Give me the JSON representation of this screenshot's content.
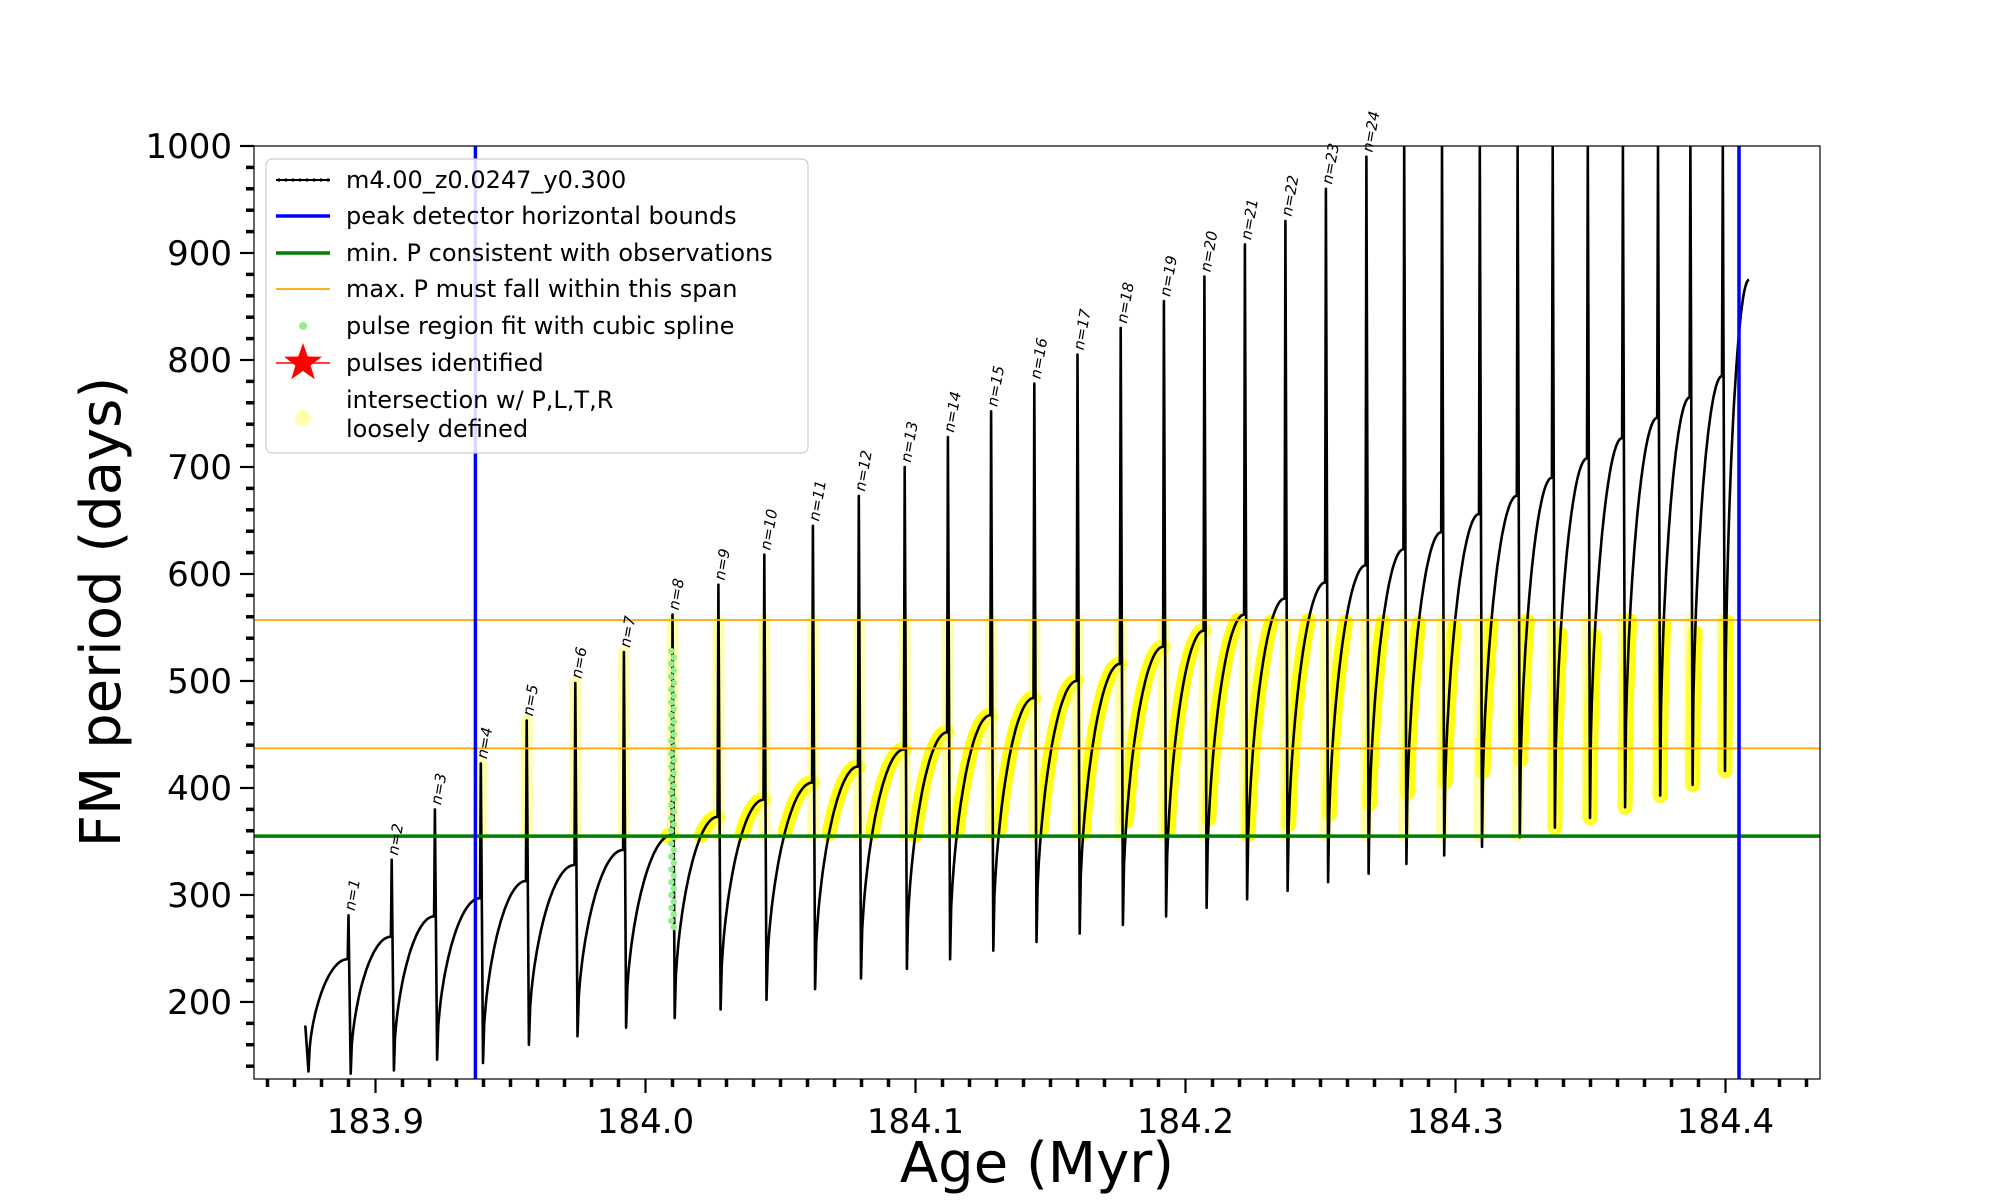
{
  "chart_data": {
    "type": "line",
    "title": "",
    "xlabel": "Age (Myr)",
    "ylabel": "FM period (days)",
    "xlim": [
      183.855,
      184.435
    ],
    "ylim": [
      128,
      1000
    ],
    "xticks": [
      183.9,
      184.0,
      184.1,
      184.2,
      184.3,
      184.4
    ],
    "xtick_labels": [
      "183.9",
      "184.0",
      "184.1",
      "184.2",
      "184.3",
      "184.4"
    ],
    "yticks": [
      200,
      300,
      400,
      500,
      600,
      700,
      800,
      900,
      1000
    ],
    "ytick_labels": [
      "200",
      "300",
      "400",
      "500",
      "600",
      "700",
      "800",
      "900",
      "1000"
    ],
    "x_minor_step": 0.01,
    "y_minor_step": 20,
    "grid": false,
    "legend_position": "top-left",
    "legend": [
      {
        "label": "m4.00_z0.0247_y0.300",
        "kind": "line-dot",
        "color": "#000000"
      },
      {
        "label": "peak detector horizontal bounds",
        "kind": "line",
        "color": "#0000ff"
      },
      {
        "label": "min. P consistent with observations",
        "kind": "line",
        "color": "#008000"
      },
      {
        "label": "max. P must fall within this span",
        "kind": "line-thin",
        "color": "#ffa500"
      },
      {
        "label": "pulse region fit with cubic spline",
        "kind": "dot",
        "color": "#90ee90"
      },
      {
        "label": "pulses identified",
        "kind": "star",
        "color": "#ff0000"
      },
      {
        "label": "intersection w/ P,L,T,R",
        "label2": "loosely defined",
        "kind": "circle",
        "color": "#ffff99"
      }
    ],
    "vlines": [
      {
        "x": 183.937,
        "color": "#0000ff"
      },
      {
        "x": 184.405,
        "color": "#0000ff"
      }
    ],
    "hlines": [
      {
        "y": 355,
        "color": "#008000"
      },
      {
        "y": 437,
        "color": "#ffa500"
      },
      {
        "y": 557,
        "color": "#ffa500"
      }
    ],
    "pulses": [
      {
        "t": 183.89,
        "trough": 133,
        "peak": 240
      },
      {
        "t": 183.906,
        "trough": 136,
        "peak": 261
      },
      {
        "t": 183.922,
        "trough": 146,
        "peak": 280
      },
      {
        "t": 183.939,
        "trough": 143,
        "peak": 297
      },
      {
        "t": 183.956,
        "trough": 160,
        "peak": 313
      },
      {
        "t": 183.974,
        "trough": 168,
        "peak": 328
      },
      {
        "t": 183.992,
        "trough": 176,
        "peak": 342
      },
      {
        "t": 184.01,
        "trough": 185,
        "peak": 356
      },
      {
        "t": 184.027,
        "trough": 193,
        "peak": 373
      },
      {
        "t": 184.044,
        "trough": 202,
        "peak": 389
      },
      {
        "t": 184.062,
        "trough": 212,
        "peak": 405
      },
      {
        "t": 184.079,
        "trough": 222,
        "peak": 420
      },
      {
        "t": 184.096,
        "trough": 231,
        "peak": 436
      },
      {
        "t": 184.112,
        "trough": 240,
        "peak": 452
      },
      {
        "t": 184.128,
        "trough": 248,
        "peak": 468
      },
      {
        "t": 184.144,
        "trough": 256,
        "peak": 484
      },
      {
        "t": 184.16,
        "trough": 264,
        "peak": 500
      },
      {
        "t": 184.176,
        "trough": 272,
        "peak": 516
      },
      {
        "t": 184.192,
        "trough": 280,
        "peak": 532
      },
      {
        "t": 184.207,
        "trough": 288,
        "peak": 547
      },
      {
        "t": 184.222,
        "trough": 296,
        "peak": 562
      },
      {
        "t": 184.237,
        "trough": 304,
        "peak": 577
      },
      {
        "t": 184.252,
        "trough": 312,
        "peak": 592
      },
      {
        "t": 184.267,
        "trough": 320,
        "peak": 608
      },
      {
        "t": 184.281,
        "trough": 329,
        "peak": 623
      },
      {
        "t": 184.295,
        "trough": 337,
        "peak": 639
      },
      {
        "t": 184.309,
        "trough": 345,
        "peak": 656
      },
      {
        "t": 184.323,
        "trough": 354,
        "peak": 673
      },
      {
        "t": 184.336,
        "trough": 363,
        "peak": 690
      },
      {
        "t": 184.349,
        "trough": 372,
        "peak": 708
      },
      {
        "t": 184.362,
        "trough": 382,
        "peak": 727
      },
      {
        "t": 184.375,
        "trough": 393,
        "peak": 746
      },
      {
        "t": 184.387,
        "trough": 403,
        "peak": 765
      },
      {
        "t": 184.399,
        "trough": 416,
        "peak": 785
      },
      {
        "t": 184.409,
        "trough": 430,
        "peak": 875
      }
    ],
    "first_pulse_start": {
      "t": 183.874,
      "trough": 135,
      "start": 178
    },
    "spike_tops": [
      281,
      333,
      380,
      423,
      463,
      498,
      527,
      562,
      590,
      618,
      645,
      673,
      700,
      728,
      752,
      778,
      805,
      830,
      855,
      878,
      908,
      930,
      960,
      990,
      1000,
      1000,
      1000,
      1000,
      1000,
      1000,
      1000,
      1000,
      1000,
      1000
    ],
    "pulse_labels": [
      "n=1",
      "n=2",
      "n=3",
      "n=4",
      "n=5",
      "n=6",
      "n=7",
      "n=8",
      "n=9",
      "n=10",
      "n=11",
      "n=12",
      "n=13",
      "n=14",
      "n=15",
      "n=16",
      "n=17",
      "n=18",
      "n=19",
      "n=20",
      "n=21",
      "n=22",
      "n=23",
      "n=24"
    ],
    "spline_region": {
      "x": 184.01,
      "ymin": 270,
      "ymax": 528
    }
  }
}
